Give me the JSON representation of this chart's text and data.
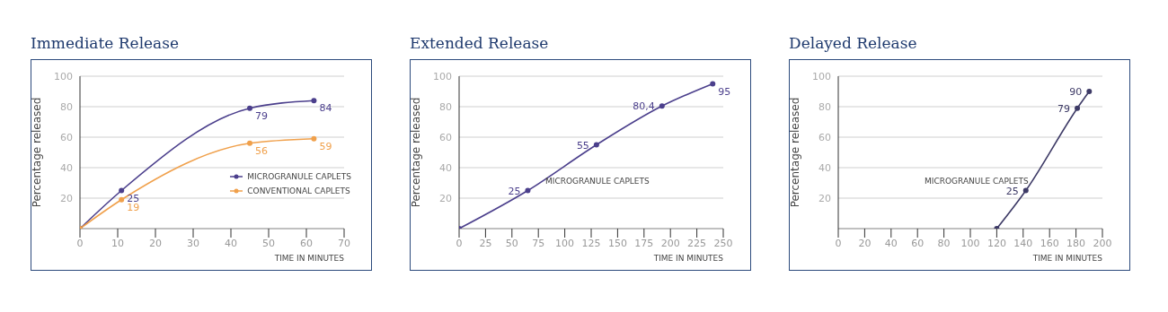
{
  "chart_data": [
    {
      "type": "line",
      "title": "Immediate Release",
      "xlabel": "TIME IN MINUTES",
      "ylabel": "Percentage released",
      "xlim": [
        0,
        70
      ],
      "xticks": [
        0,
        10,
        20,
        30,
        40,
        50,
        60,
        70
      ],
      "ylim": [
        0,
        100
      ],
      "yticks": [
        20,
        40,
        60,
        80,
        100
      ],
      "grid": "y",
      "legend": "right",
      "marker": "circle",
      "line_style": "solid",
      "series": [
        {
          "name": "MICROGRANULE CAPLETS",
          "color": "#4b3f8c",
          "x": [
            0,
            11,
            45,
            62
          ],
          "values": [
            0,
            25,
            79,
            84
          ],
          "value_labels": [
            null,
            "25",
            "79",
            "84"
          ]
        },
        {
          "name": "CONVENTIONAL CAPLETS",
          "color": "#f0a04b",
          "x": [
            0,
            11,
            45,
            62
          ],
          "values": [
            0,
            19,
            56,
            59
          ],
          "value_labels": [
            null,
            "19",
            "56",
            "59"
          ]
        }
      ]
    },
    {
      "type": "line",
      "title": "Extended Release",
      "xlabel": "TIME IN MINUTES",
      "ylabel": "Percentage released",
      "xlim": [
        0,
        250
      ],
      "xticks": [
        0,
        25,
        50,
        75,
        100,
        125,
        150,
        175,
        200,
        225,
        250
      ],
      "ylim": [
        0,
        100
      ],
      "yticks": [
        20,
        40,
        60,
        80,
        100
      ],
      "grid": "y",
      "marker": "circle",
      "line_style": "solid",
      "annotations": [
        "MICROGRANULE CAPLETS"
      ],
      "series": [
        {
          "color": "#4b3f8c",
          "x": [
            0,
            65,
            130,
            192,
            240
          ],
          "values": [
            0,
            25,
            55,
            80.4,
            95
          ],
          "value_labels": [
            null,
            "25",
            "55",
            "80,4",
            "95"
          ]
        }
      ]
    },
    {
      "type": "line",
      "title": "Delayed Release",
      "xlabel": "TIME IN MINUTES",
      "ylabel": "Percentage released",
      "xlim": [
        0,
        200
      ],
      "xticks": [
        0,
        20,
        40,
        60,
        80,
        100,
        120,
        140,
        160,
        180,
        200
      ],
      "ylim": [
        0,
        100
      ],
      "yticks": [
        20,
        40,
        60,
        80,
        100
      ],
      "grid": "y",
      "marker": "circle",
      "line_style": "solid",
      "annotations": [
        "MICROGRANULE CAPLETS"
      ],
      "series": [
        {
          "color": "#3d3a66",
          "x": [
            120,
            142,
            181,
            190
          ],
          "values": [
            0,
            25,
            79,
            90
          ],
          "value_labels": [
            null,
            "25",
            "79",
            "90"
          ]
        }
      ]
    }
  ]
}
